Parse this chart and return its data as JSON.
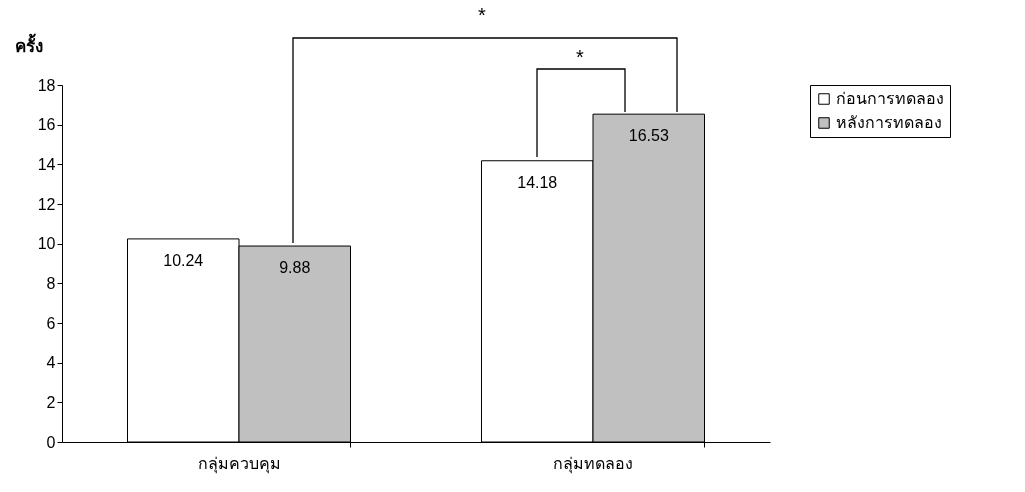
{
  "chart_data": {
    "type": "bar",
    "ylabel": "ครั้ง",
    "categories": [
      "กลุ่มควบคุม",
      "กลุ่มทดลอง"
    ],
    "series": [
      {
        "name": "ก่อนการทดลอง",
        "color": "#ffffff",
        "values": [
          10.24,
          14.18
        ]
      },
      {
        "name": "หลังการทดลอง",
        "color": "#c0c0c0",
        "values": [
          9.88,
          16.53
        ]
      }
    ],
    "ylim": [
      0,
      18
    ],
    "yticks": [
      0,
      2,
      4,
      6,
      8,
      10,
      12,
      14,
      16,
      18
    ],
    "grid": false,
    "legend": "right",
    "data_labels": true,
    "annotations": [
      "*",
      "*"
    ]
  }
}
